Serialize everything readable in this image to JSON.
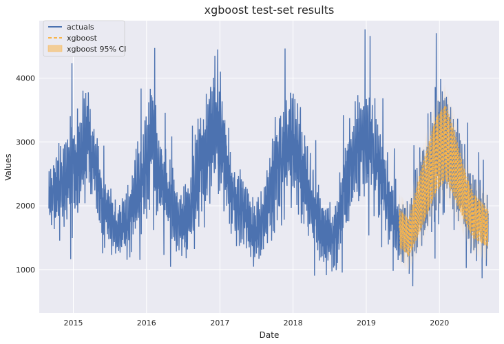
{
  "chart_data": {
    "type": "line",
    "title": "xgboost test-set results",
    "xlabel": "Date",
    "ylabel": "Values",
    "xlim": [
      "2014-07-15",
      "2020-10-25"
    ],
    "ylim": [
      320,
      4900
    ],
    "x_ticks": [
      "2015",
      "2016",
      "2017",
      "2018",
      "2019",
      "2020"
    ],
    "y_ticks": [
      1000,
      2000,
      3000,
      4000
    ],
    "grid": true,
    "legend_position": "top-left",
    "colors": {
      "actuals": "#4c72b0",
      "xgboost": "#f9b44a",
      "ci": "#f2cd97",
      "plot_bg": "#eaeaf2",
      "grid": "#ffffff"
    },
    "series": [
      {
        "name": "actuals",
        "style": "solid",
        "date_range": [
          "2014-09-01",
          "2020-08-31"
        ],
        "x": [
          "2014-09-01",
          "2014-11-01",
          "2015-01-01",
          "2015-03-15",
          "2015-05-01",
          "2015-06-01",
          "2015-08-01",
          "2015-10-01",
          "2015-12-15",
          "2016-02-01",
          "2016-03-01",
          "2016-05-01",
          "2016-06-15",
          "2016-08-01",
          "2016-10-01",
          "2016-12-15",
          "2017-02-01",
          "2017-03-15",
          "2017-05-01",
          "2017-06-15",
          "2017-08-01",
          "2017-10-01",
          "2017-12-15",
          "2018-02-01",
          "2018-03-15",
          "2018-05-01",
          "2018-06-15",
          "2018-08-01",
          "2018-10-01",
          "2018-12-15",
          "2019-02-01",
          "2019-03-15",
          "2019-05-01",
          "2019-06-15",
          "2019-08-01",
          "2019-10-01",
          "2019-12-15",
          "2020-02-01",
          "2020-03-15",
          "2020-05-01",
          "2020-06-15",
          "2020-08-31"
        ],
        "center": [
          2100,
          2300,
          2600,
          3000,
          2500,
          2000,
          1600,
          1700,
          2500,
          3100,
          2500,
          2000,
          1700,
          1800,
          2700,
          3300,
          2600,
          2100,
          1900,
          1600,
          1700,
          2500,
          2950,
          2800,
          2200,
          1800,
          1500,
          1500,
          2450,
          3100,
          2900,
          2500,
          2000,
          1650,
          1500,
          2100,
          2800,
          3000,
          2650,
          2200,
          1850,
          1650
        ],
        "swing": [
          500,
          700,
          900,
          900,
          600,
          500,
          500,
          500,
          800,
          900,
          700,
          600,
          500,
          550,
          900,
          1000,
          800,
          600,
          500,
          500,
          500,
          800,
          900,
          900,
          700,
          600,
          500,
          500,
          800,
          900,
          900,
          700,
          600,
          500,
          500,
          800,
          1000,
          1000,
          900,
          700,
          600,
          500
        ]
      },
      {
        "name": "xgboost",
        "style": "dashed",
        "date_range": [
          "2019-06-15",
          "2020-08-31"
        ]
      },
      {
        "name": "xgboost 95% CI",
        "style": "band",
        "date_range": [
          "2019-06-15",
          "2020-08-31"
        ]
      }
    ]
  }
}
